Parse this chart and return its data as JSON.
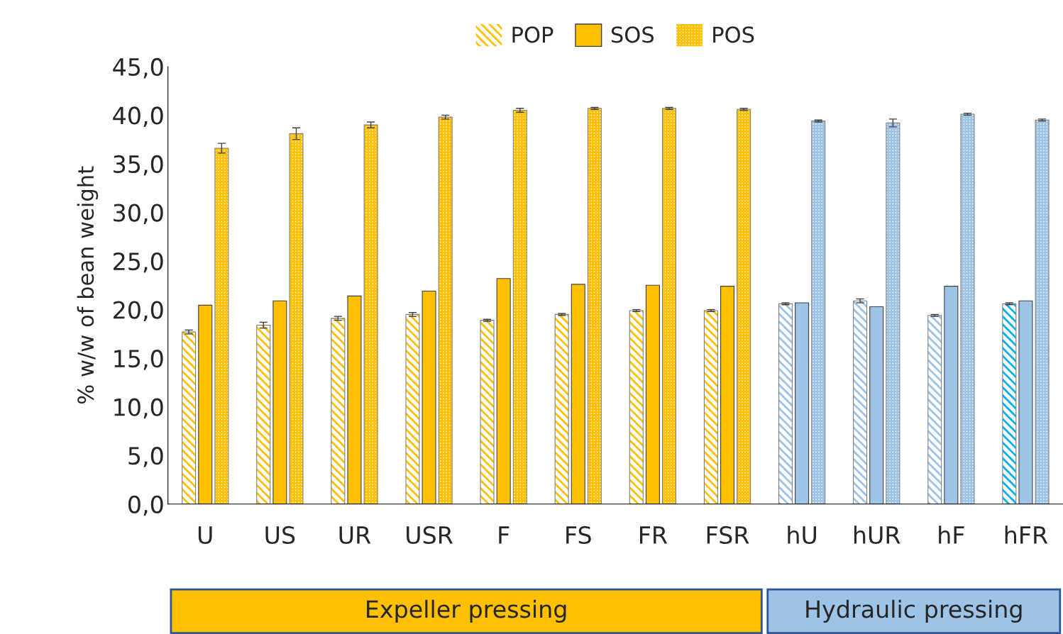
{
  "chart_data": {
    "type": "bar",
    "ylabel": "% w/w of bean weight",
    "categories": [
      "U",
      "US",
      "UR",
      "USR",
      "F",
      "FS",
      "FR",
      "FSR",
      "hU",
      "hUR",
      "hF",
      "hFR"
    ],
    "series": [
      {
        "name": "POP",
        "color": "#ffc000",
        "colors": [
          "#ffc000",
          "#ffc000",
          "#ffc000",
          "#ffc000",
          "#ffc000",
          "#ffc000",
          "#ffc000",
          "#ffc000",
          "#9dc3e6",
          "#9dc3e6",
          "#9dc3e6",
          "#00b0f0"
        ],
        "values": [
          17.7,
          18.4,
          19.1,
          19.5,
          18.9,
          19.5,
          19.9,
          19.9,
          20.6,
          20.9,
          19.4,
          20.6
        ],
        "errors": [
          0.2,
          0.3,
          0.2,
          0.2,
          0.1,
          0.1,
          0.1,
          0.1,
          0.1,
          0.2,
          0.1,
          0.1
        ]
      },
      {
        "name": "SOS",
        "color": "#ffc000",
        "colors": [
          "#ffc000",
          "#ffc000",
          "#ffc000",
          "#ffc000",
          "#ffc000",
          "#ffc000",
          "#ffc000",
          "#ffc000",
          "#9dc3e6",
          "#9dc3e6",
          "#9dc3e6",
          "#9dc3e6"
        ],
        "values": [
          20.45,
          20.9,
          21.4,
          21.9,
          23.2,
          22.6,
          22.5,
          22.4,
          20.7,
          20.3,
          22.4,
          20.9
        ]
      },
      {
        "name": "POS",
        "color": "#ffc000",
        "colors": [
          "#ffc000",
          "#ffc000",
          "#ffc000",
          "#ffc000",
          "#ffc000",
          "#ffc000",
          "#ffc000",
          "#ffc000",
          "#9dc3e6",
          "#9dc3e6",
          "#9dc3e6",
          "#9dc3e6"
        ],
        "values": [
          36.6,
          38.1,
          39.0,
          39.8,
          40.5,
          40.7,
          40.7,
          40.6,
          39.4,
          39.2,
          40.1,
          39.5
        ],
        "errors": [
          0.5,
          0.6,
          0.3,
          0.2,
          0.2,
          0.1,
          0.1,
          0.1,
          0.1,
          0.4,
          0.1,
          0.1
        ]
      }
    ],
    "ylim": [
      0,
      45
    ],
    "yticks": [
      {
        "value": 0,
        "label": "0,0"
      },
      {
        "value": 5,
        "label": "5,0"
      },
      {
        "value": 10,
        "label": "10,0"
      },
      {
        "value": 15,
        "label": "15,0"
      },
      {
        "value": 20,
        "label": "20,0"
      },
      {
        "value": 25,
        "label": "25,0"
      },
      {
        "value": 30,
        "label": "30,0"
      },
      {
        "value": 35,
        "label": "35,0"
      },
      {
        "value": 40,
        "label": "40,0"
      },
      {
        "value": 45,
        "label": "45,0"
      }
    ],
    "annotations": [
      "Expeller pressing",
      "Hydraulic pressing"
    ],
    "legend": "top",
    "grid": false
  }
}
